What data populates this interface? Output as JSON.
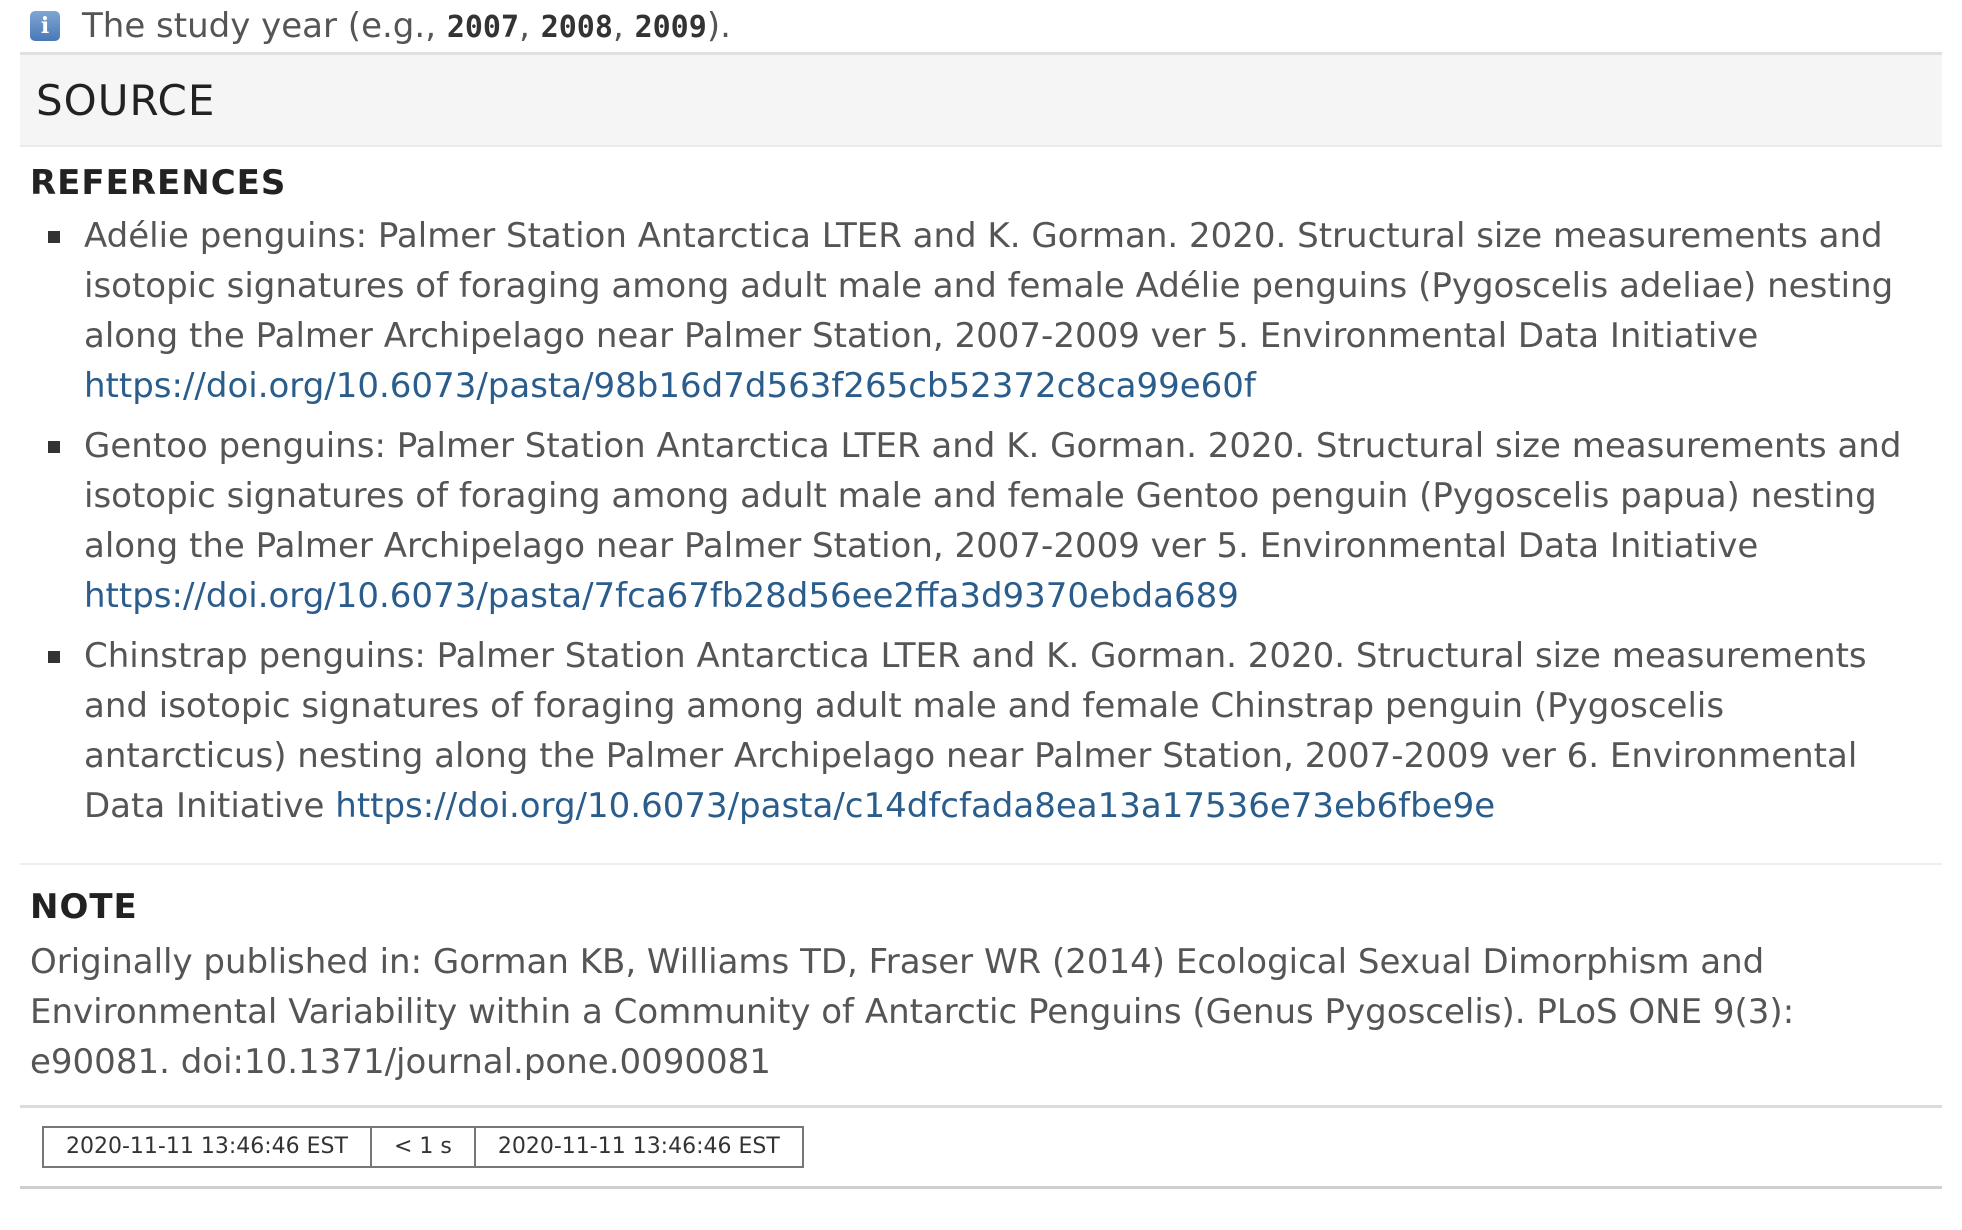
{
  "variable": {
    "description_prefix": "The study year (e.g., ",
    "examples": [
      "2007",
      "2008",
      "2009"
    ],
    "separator": ", ",
    "description_suffix": ")."
  },
  "source": {
    "title": "SOURCE",
    "references_title": "REFERENCES",
    "references": [
      {
        "text": "Adélie penguins: Palmer Station Antarctica LTER and K. Gorman. 2020. Structural size measurements and isotopic signatures of foraging among adult male and female Adélie penguins (Pygoscelis adeliae) nesting along the Palmer Archipelago near Palmer Station, 2007-2009 ver 5. Environmental Data Initiative",
        "link": "https://doi.org/10.6073/pasta/98b16d7d563f265cb52372c8ca99e60f"
      },
      {
        "text": "Gentoo penguins: Palmer Station Antarctica LTER and K. Gorman. 2020. Structural size measurements and isotopic signatures of foraging among adult male and female Gentoo penguin (Pygoscelis papua) nesting along the Palmer Archipelago near Palmer Station, 2007-2009 ver 5. Environmental Data Initiative",
        "link": "https://doi.org/10.6073/pasta/7fca67fb28d56ee2ffa3d9370ebda689"
      },
      {
        "text": "Chinstrap penguins: Palmer Station Antarctica LTER and K. Gorman. 2020. Structural size measurements and isotopic signatures of foraging among adult male and female Chinstrap penguin (Pygoscelis antarcticus) nesting along the Palmer Archipelago near Palmer Station, 2007-2009 ver 6. Environmental Data Initiative",
        "link": "https://doi.org/10.6073/pasta/c14dfcfada8ea13a17536e73eb6fbe9e"
      }
    ],
    "note_title": "NOTE",
    "note_text": "Originally published in: Gorman KB, Williams TD, Fraser WR (2014) Ecological Sexual Dimorphism and Environmental Variability within a Community of Antarctic Penguins (Genus Pygoscelis). PLoS ONE 9(3): e90081. doi:10.1371/journal.pone.0090081"
  },
  "footer": {
    "start_time": "2020-11-11 13:46:46 EST",
    "duration": "< 1 s",
    "end_time": "2020-11-11 13:46:46 EST"
  },
  "colors": {
    "link": "#2a5d8c",
    "text": "#555555",
    "header_bg": "#f5f5f5"
  },
  "icons": {
    "info": "info-icon"
  }
}
